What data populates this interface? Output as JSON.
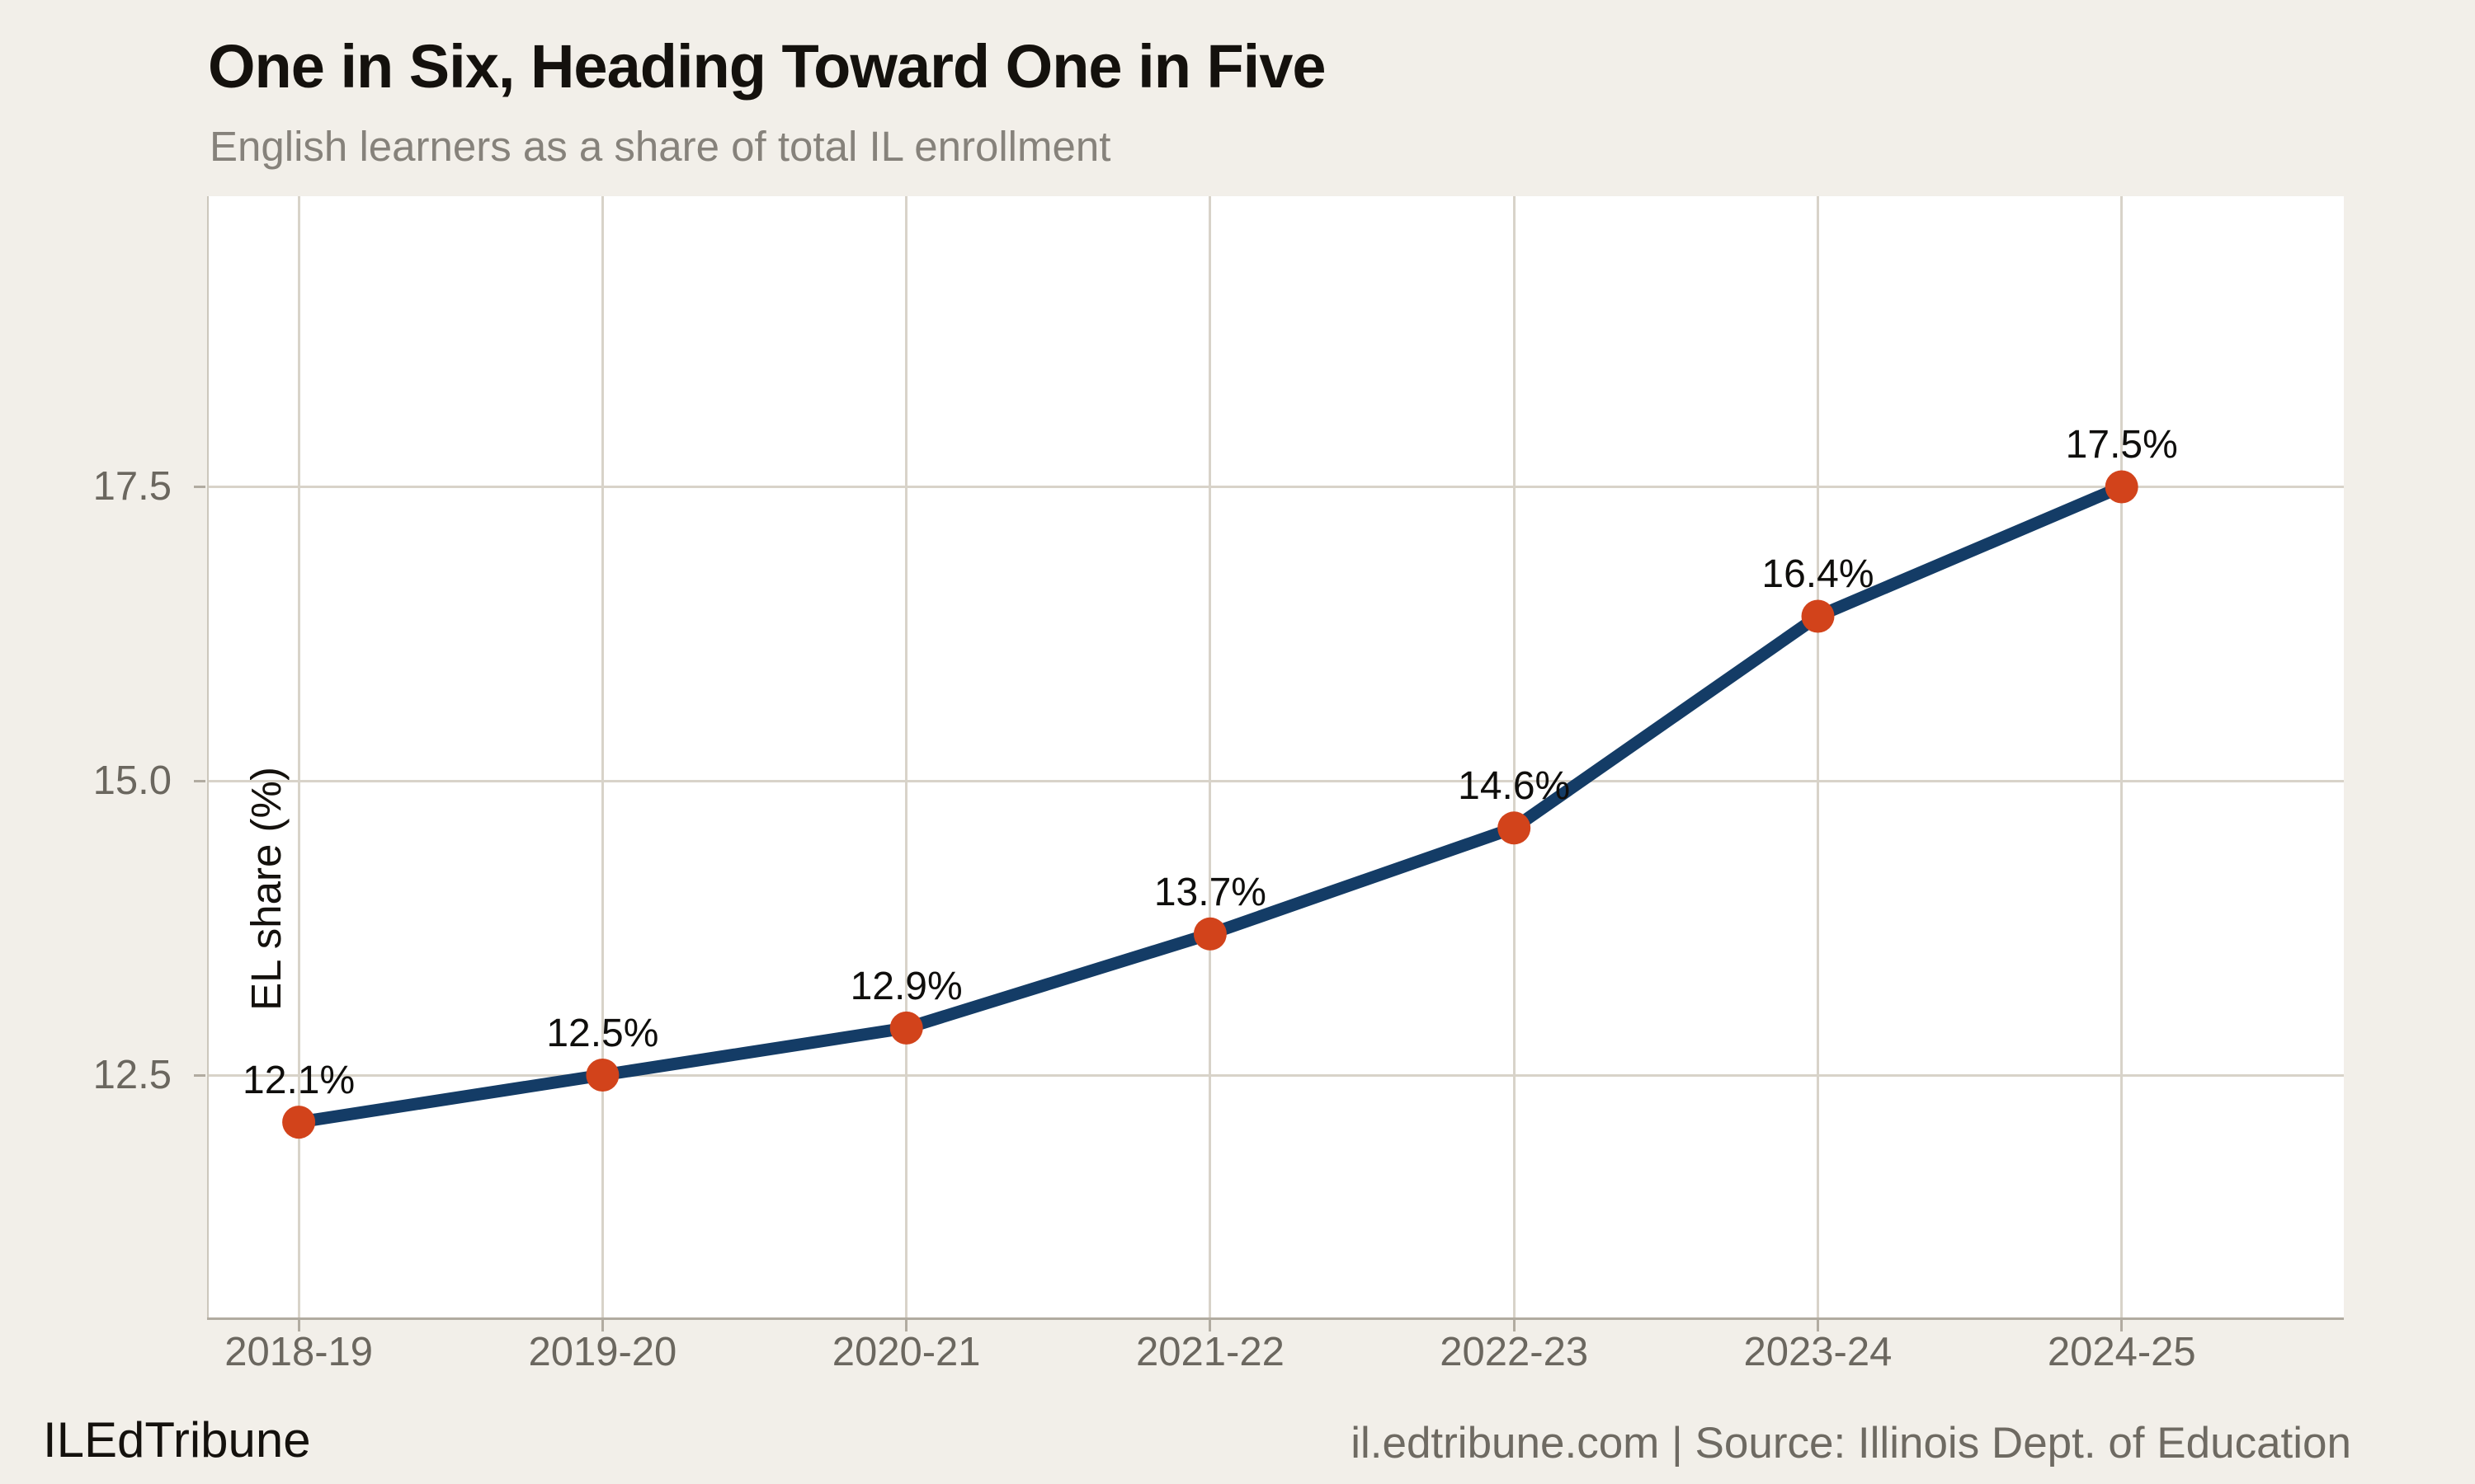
{
  "chart_data": {
    "type": "line",
    "title": "One in Six, Heading Toward One in Five",
    "subtitle": "English learners as a share of total IL enrollment",
    "categories": [
      "2018-19",
      "2019-20",
      "2020-21",
      "2021-22",
      "2022-23",
      "2023-24",
      "2024-25"
    ],
    "values": [
      12.1,
      12.5,
      12.9,
      13.7,
      14.6,
      16.4,
      17.5
    ],
    "point_labels": [
      "12.1%",
      "12.5%",
      "12.9%",
      "13.7%",
      "14.6%",
      "16.4%",
      "17.5%"
    ],
    "xlabel": "",
    "ylabel": "EL share (%)",
    "yticks": [
      12.5,
      15.0,
      17.5
    ],
    "ytick_labels": [
      "12.5",
      "15.0",
      "17.5"
    ],
    "ylim": [
      10.44,
      19.97
    ],
    "grid": true,
    "legend": "none",
    "line_color": "#143c66",
    "marker_color": "#d2431b"
  },
  "colors": {
    "background": "#f2efe9",
    "plot_background": "#ffffff",
    "gridline": "#d8d3c9",
    "axis": "#b1aba0",
    "title_text": "#14110d",
    "subtitle_text": "#86827b",
    "tick_text": "#6b675f"
  },
  "footer": {
    "brand": "ILEdTribune",
    "source": "il.edtribune.com | Source: Illinois Dept. of Education"
  }
}
